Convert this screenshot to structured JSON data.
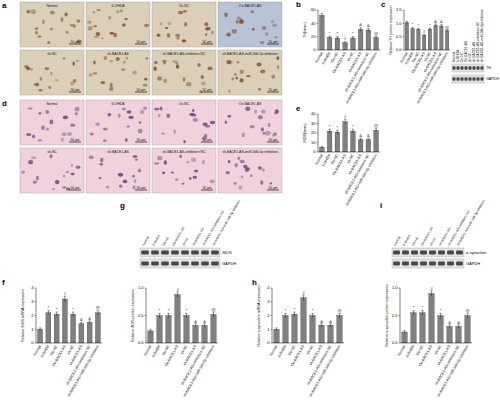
{
  "panel_labels": [
    "a",
    "b",
    "c",
    "d",
    "e",
    "f",
    "g",
    "h",
    "i"
  ],
  "image_panels": [
    {
      "captions": [
        "Normal",
        "6-OHDA",
        "Oe-NC",
        "Oe-BACE1-AS",
        "sh-NC",
        "sh-BACE1-AS",
        "sh-BACE1-AS+inhibitors NC",
        "sh-BACE1-AS+miR-34b-5p inhibitors"
      ],
      "scale_bar": "50 μm"
    },
    {
      "captions": [
        "Normal",
        "6-OHDA",
        "Oe-NC",
        "Oe-BACE1-AS",
        "sh-NC",
        "sh-BACE1-AS",
        "sh-BACE1-AS+inhibitors NC",
        "sh-BACE1-AS+miR-34b-5p inhibitors"
      ],
      "scale_bar": "50 μm"
    }
  ],
  "blots": [
    {
      "rows": [
        "TH",
        "GAPDH"
      ]
    },
    {
      "rows": [
        "iNOS",
        "GAPDH"
      ]
    },
    {
      "rows": [
        "α-synuclein",
        "GAPDH"
      ]
    }
  ],
  "chart_data": [
    {
      "type": "bar",
      "ylabel": "TH(/mm²)",
      "categories": [
        "Normal",
        "6-OHDA",
        "Oe-NC",
        "Oe-BACE1-AS",
        "sh-NC",
        "sh-BACE1-AS",
        "sh-BACE1-AS+inhibitors NC",
        "sh-BACE1-AS+miR-34b-5p inhibitors"
      ],
      "values": [
        52,
        19,
        18,
        11,
        18,
        31,
        30,
        19
      ],
      "errors": [
        3,
        2,
        2,
        1.5,
        2,
        2.5,
        2.5,
        2
      ],
      "annotations": [
        null,
        "*",
        "*",
        "#",
        "*",
        "&",
        "&",
        "@"
      ],
      "ylim": [
        0,
        60
      ],
      "yticks": [
        0,
        20,
        40,
        60
      ],
      "color": "#808080"
    },
    {
      "type": "bar",
      "ylabel": "Relative TH protein expression",
      "categories": [
        "Normal",
        "6-OHDA",
        "Oe-NC",
        "Oe-BACE1-AS",
        "sh-NC",
        "sh-BACE1-AS",
        "sh-BACE1-AS+inhibitors NC",
        "sh-BACE1-AS+miR-34b-5p inhibitors"
      ],
      "values": [
        1.02,
        0.8,
        0.78,
        0.55,
        0.78,
        0.92,
        0.9,
        0.72
      ],
      "errors": [
        0.05,
        0.04,
        0.04,
        0.04,
        0.04,
        0.05,
        0.05,
        0.04
      ],
      "annotations": [
        null,
        "*",
        "*",
        "#",
        "*",
        "&",
        "&",
        "@"
      ],
      "ylim": [
        0,
        1.5
      ],
      "yticks": [
        {
          "value": 0,
          "label": "0.0"
        },
        {
          "value": 0.5,
          "label": "0.5"
        },
        {
          "value": 1,
          "label": "1.0"
        },
        {
          "value": 1.5,
          "label": "1.5"
        }
      ],
      "color": "#808080"
    },
    {
      "type": "bar",
      "ylabel": "iNOS(/mm²)",
      "categories": [
        "Normal",
        "6-OHDA",
        "Oe-NC",
        "Oe-BACE1-AS",
        "sh-NC",
        "sh-BACE1-AS",
        "sh-BACE1-AS+inhibitors NC",
        "sh-BACE1-AS+miR-34b-5p inhibitors"
      ],
      "values": [
        5,
        22,
        21,
        32,
        22,
        13,
        13,
        23
      ],
      "errors": [
        1,
        2,
        2,
        2.5,
        2,
        1.5,
        1.5,
        2
      ],
      "annotations": [
        null,
        "*",
        "*",
        "#",
        "*",
        "&",
        "&",
        "@"
      ],
      "ylim": [
        0,
        40
      ],
      "yticks": [
        0,
        10,
        20,
        30,
        40
      ],
      "color": "#808080"
    },
    {
      "type": "bar",
      "ylabel": "Relative iNOS mRNA expression",
      "categories": [
        "Normal",
        "6-OHDA",
        "Oe-NC",
        "Oe-BACE1-AS",
        "sh-NC",
        "sh-BACE1-AS",
        "sh-BACE1-AS+inhibitors NC",
        "sh-BACE1-AS+miR-34b-5p inhibitors"
      ],
      "values": [
        1,
        2.2,
        2.1,
        3.2,
        2.1,
        1.4,
        1.5,
        2.2
      ],
      "errors": [
        0.1,
        0.15,
        0.15,
        0.2,
        0.15,
        0.1,
        0.1,
        0.15
      ],
      "annotations": [
        null,
        "*",
        "*",
        "#",
        "*",
        "&",
        "&",
        "@"
      ],
      "ylim": [
        0,
        4
      ],
      "yticks": [
        0,
        1,
        2,
        3,
        4
      ],
      "color": "#808080"
    },
    {
      "type": "bar",
      "ylabel": "Relative iNOS protein expression",
      "categories": [
        "Normal",
        "6-OHDA",
        "Oe-NC",
        "Oe-BACE1-AS",
        "sh-NC",
        "sh-BACE1-AS",
        "sh-BACE1-AS+inhibitors NC",
        "sh-BACE1-AS+miR-34b-5p inhibitors"
      ],
      "values": [
        0.22,
        0.5,
        0.5,
        0.88,
        0.5,
        0.32,
        0.32,
        0.52
      ],
      "errors": [
        0.03,
        0.04,
        0.04,
        0.05,
        0.04,
        0.03,
        0.03,
        0.04
      ],
      "annotations": [
        null,
        "*",
        "*",
        "#",
        "*",
        "&",
        "&",
        "@"
      ],
      "ylim": [
        0,
        1
      ],
      "yticks": [
        {
          "value": 0,
          "label": "0.0"
        },
        {
          "value": 0.5,
          "label": "0.5"
        },
        {
          "value": 1,
          "label": "1.0"
        }
      ],
      "color": "#808080"
    },
    {
      "type": "bar",
      "ylabel": "Relative α-synuclein mRNA expression",
      "categories": [
        "Normal",
        "6-OHDA",
        "Oe-NC",
        "Oe-BACE1-AS",
        "sh-NC",
        "sh-BACE1-AS",
        "sh-BACE1-AS+inhibitors NC",
        "sh-BACE1-AS+miR-34b-5p inhibitors"
      ],
      "values": [
        1,
        2,
        2.1,
        3.3,
        2,
        1.3,
        1.3,
        2
      ],
      "errors": [
        0.1,
        0.15,
        0.15,
        0.2,
        0.15,
        0.1,
        0.1,
        0.15
      ],
      "annotations": [
        null,
        "*",
        "*",
        "#",
        "*",
        "&",
        "&",
        "@"
      ],
      "ylim": [
        0,
        4
      ],
      "yticks": [
        0,
        1,
        2,
        3,
        4
      ],
      "color": "#808080"
    },
    {
      "type": "bar",
      "ylabel": "Relative α-synuclein protein expression",
      "categories": [
        "Normal",
        "6-OHDA",
        "Oe-NC",
        "Oe-BACE1-AS",
        "sh-NC",
        "sh-BACE1-AS",
        "sh-BACE1-AS+inhibitors NC",
        "sh-BACE1-AS+miR-34b-5p inhibitors"
      ],
      "values": [
        0.2,
        0.55,
        0.55,
        0.9,
        0.5,
        0.3,
        0.3,
        0.5
      ],
      "errors": [
        0.03,
        0.04,
        0.04,
        0.05,
        0.04,
        0.03,
        0.03,
        0.04
      ],
      "annotations": [
        null,
        "*",
        "*",
        "#",
        "*",
        "&",
        "&",
        "@"
      ],
      "ylim": [
        0,
        1
      ],
      "yticks": [
        {
          "value": 0,
          "label": "0.0"
        },
        {
          "value": 0.5,
          "label": "0.5"
        },
        {
          "value": 1,
          "label": "1.0"
        }
      ],
      "color": "#808080"
    }
  ]
}
